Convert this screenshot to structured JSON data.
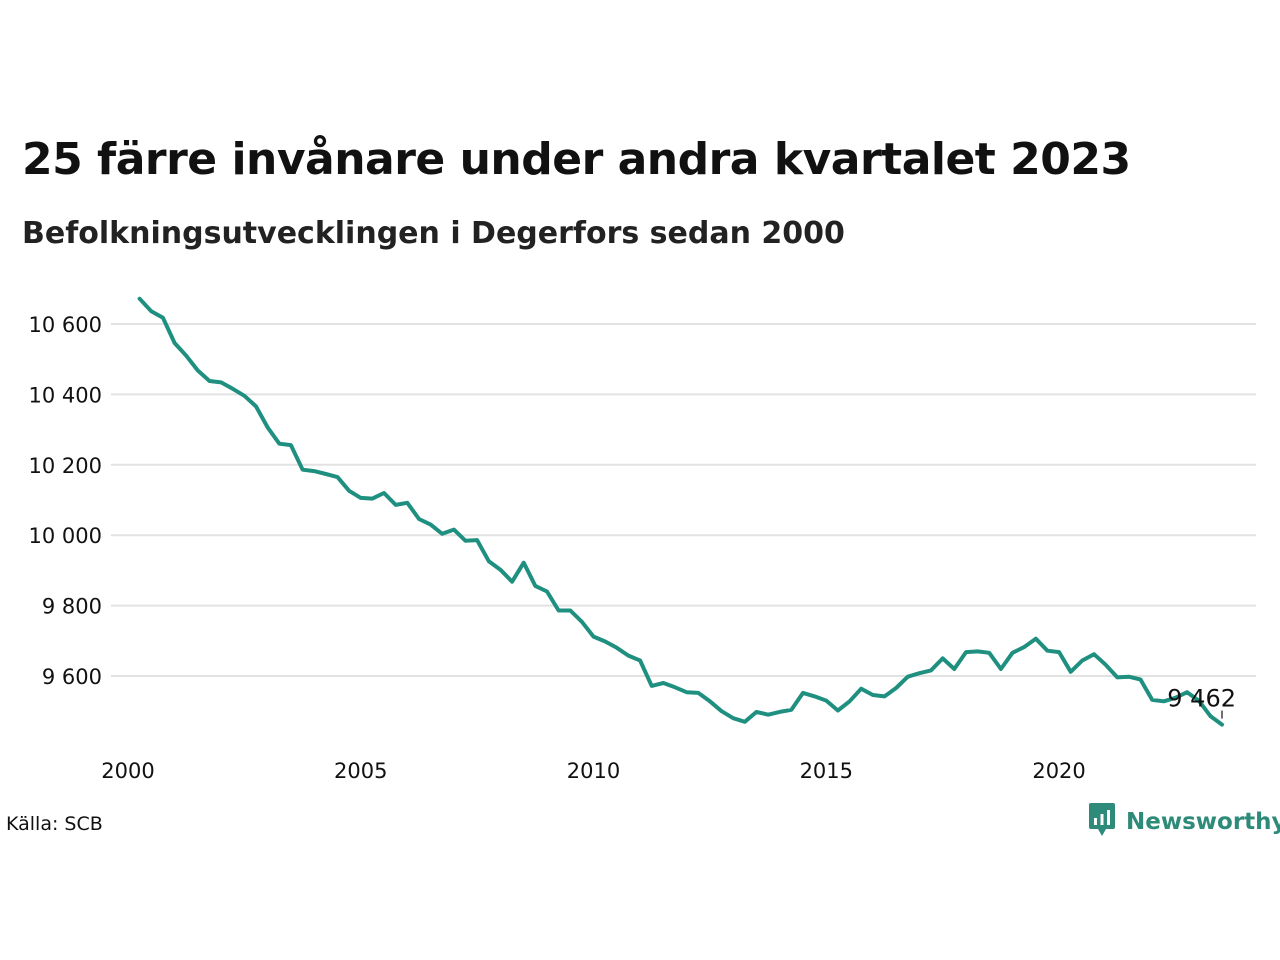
{
  "title": "25 färre invånare under andra kvartalet 2023",
  "subtitle": "Befolkningsutvecklingen i Degerfors sedan 2000",
  "source": "Källa: SCB",
  "brand": {
    "name": "Newsworthy",
    "icon": "newsworthy-logo-icon",
    "color": "#2e8b79"
  },
  "chart_data": {
    "type": "line",
    "title": "25 färre invånare under andra kvartalet 2023",
    "subtitle": "Befolkningsutvecklingen i Degerfors sedan 2000",
    "xlabel": "",
    "ylabel": "",
    "xlim": [
      2000,
      2023.5
    ],
    "ylim": [
      9420,
      10720
    ],
    "grid": true,
    "line_color": "#1f9080",
    "x_ticks": [
      2000,
      2005,
      2010,
      2015,
      2020
    ],
    "x_tick_labels": [
      "2000",
      "2005",
      "2010",
      "2015",
      "2020"
    ],
    "y_ticks": [
      9600,
      9800,
      10000,
      10200,
      10400,
      10600
    ],
    "y_tick_labels": [
      "9 600",
      "9 800",
      "10 000",
      "10 200",
      "10 400",
      "10 600"
    ],
    "end_label": "9 462",
    "series": [
      {
        "x": [
          2000.25,
          2000.5,
          2000.75,
          2001,
          2001.25,
          2001.5,
          2001.75,
          2002,
          2002.25,
          2002.5,
          2002.75,
          2003,
          2003.25,
          2003.5,
          2003.75,
          2004,
          2004.25,
          2004.5,
          2004.75,
          2005,
          2005.25,
          2005.5,
          2005.75,
          2006,
          2006.25,
          2006.5,
          2006.75,
          2007,
          2007.25,
          2007.5,
          2007.75,
          2008,
          2008.25,
          2008.5,
          2008.75,
          2009,
          2009.25,
          2009.5,
          2009.75,
          2010,
          2010.25,
          2010.5,
          2010.75,
          2011,
          2011.25,
          2011.5,
          2011.75,
          2012,
          2012.25,
          2012.5,
          2012.75,
          2013,
          2013.25,
          2013.5,
          2013.75,
          2014,
          2014.25,
          2014.5,
          2014.75,
          2015,
          2015.25,
          2015.5,
          2015.75,
          2016,
          2016.25,
          2016.5,
          2016.75,
          2017,
          2017.25,
          2017.5,
          2017.75,
          2018,
          2018.25,
          2018.5,
          2018.75,
          2019,
          2019.25,
          2019.5,
          2019.75,
          2020,
          2020.25,
          2020.5,
          2020.75,
          2021,
          2021.25,
          2021.5,
          2021.75,
          2022,
          2022.25,
          2022.5,
          2022.75,
          2023,
          2023.25,
          2023.5
        ],
        "values": [
          10672,
          10636,
          10618,
          10546,
          10510,
          10468,
          10438,
          10434,
          10416,
          10396,
          10366,
          10306,
          10260,
          10256,
          10186,
          10182,
          10174,
          10165,
          10126,
          10106,
          10104,
          10120,
          10086,
          10092,
          10046,
          10030,
          10004,
          10016,
          9984,
          9986,
          9926,
          9902,
          9868,
          9922,
          9856,
          9840,
          9786,
          9786,
          9754,
          9712,
          9698,
          9680,
          9658,
          9644,
          9572,
          9580,
          9568,
          9554,
          9552,
          9528,
          9500,
          9480,
          9470,
          9498,
          9490,
          9498,
          9504,
          9552,
          9542,
          9530,
          9502,
          9528,
          9564,
          9546,
          9542,
          9566,
          9598,
          9608,
          9616,
          9650,
          9620,
          9668,
          9670,
          9666,
          9620,
          9666,
          9682,
          9706,
          9672,
          9668,
          9612,
          9644,
          9662,
          9632,
          9596,
          9598,
          9590,
          9532,
          9528,
          9538,
          9554,
          9530,
          9486,
          9462
        ]
      }
    ]
  }
}
